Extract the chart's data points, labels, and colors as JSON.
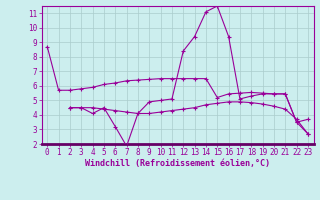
{
  "x": [
    0,
    1,
    2,
    3,
    4,
    5,
    6,
    7,
    8,
    9,
    10,
    11,
    12,
    13,
    14,
    15,
    16,
    17,
    18,
    19,
    20,
    21,
    22,
    23
  ],
  "temp_line": [
    8.7,
    5.7,
    5.7,
    5.8,
    5.9,
    6.1,
    6.2,
    6.35,
    6.4,
    6.45,
    6.5,
    6.5,
    6.5,
    6.5,
    6.5,
    5.2,
    5.45,
    5.5,
    5.55,
    5.5,
    5.45,
    5.45,
    3.5,
    3.7
  ],
  "windchill_line": [
    null,
    null,
    4.5,
    4.5,
    4.1,
    4.5,
    3.2,
    1.85,
    4.1,
    4.9,
    5.0,
    5.1,
    8.4,
    9.4,
    11.1,
    11.5,
    9.4,
    5.1,
    5.3,
    5.45,
    5.45,
    5.45,
    3.5,
    2.7
  ],
  "dew_line": [
    null,
    null,
    4.5,
    4.5,
    4.5,
    4.4,
    4.3,
    4.2,
    4.1,
    4.1,
    4.2,
    4.3,
    4.4,
    4.5,
    4.7,
    4.8,
    4.9,
    4.9,
    4.85,
    4.75,
    4.6,
    4.4,
    3.7,
    2.7
  ],
  "line_color": "#990099",
  "bg_color": "#cceeee",
  "grid_color": "#aacccc",
  "xlabel": "Windchill (Refroidissement éolien,°C)",
  "ylim": [
    2,
    11.5
  ],
  "xlim": [
    -0.5,
    23.5
  ],
  "yticks": [
    2,
    3,
    4,
    5,
    6,
    7,
    8,
    9,
    10,
    11
  ],
  "xticks": [
    0,
    1,
    2,
    3,
    4,
    5,
    6,
    7,
    8,
    9,
    10,
    11,
    12,
    13,
    14,
    15,
    16,
    17,
    18,
    19,
    20,
    21,
    22,
    23
  ],
  "tick_fontsize": 5.5,
  "xlabel_fontsize": 6.0,
  "marker_size": 3,
  "line_width": 0.8
}
